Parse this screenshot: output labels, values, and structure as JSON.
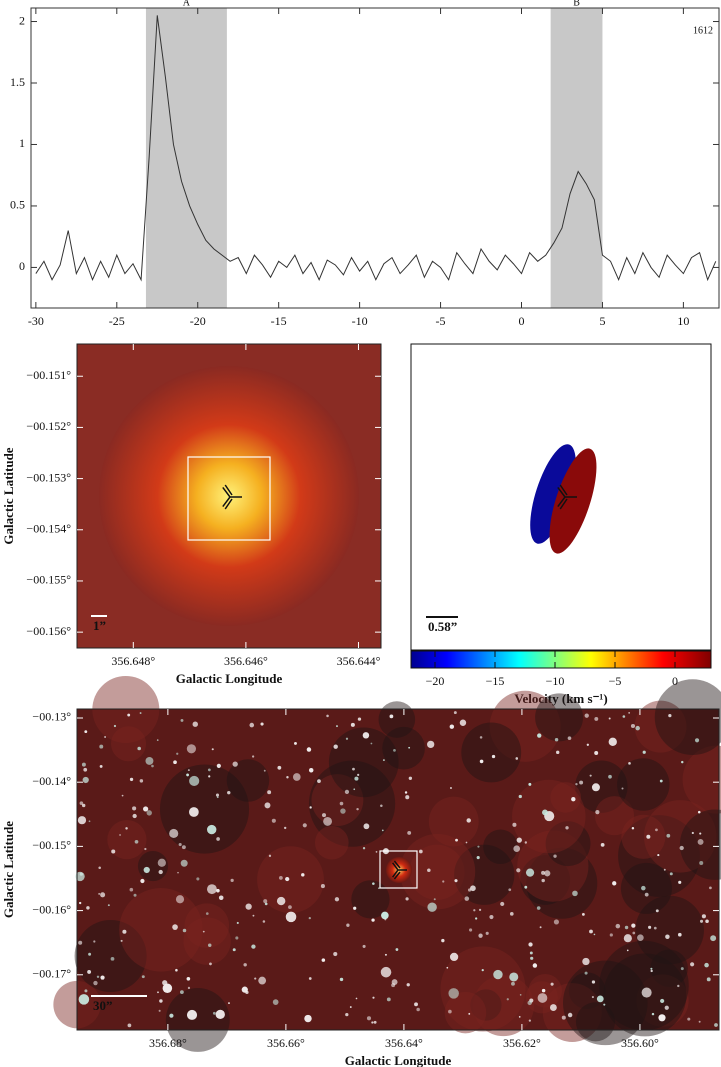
{
  "chart_data": [
    {
      "type": "line",
      "annotation": "1612",
      "color": "#333333",
      "xlim": [
        -30.3,
        12.2
      ],
      "ylim": [
        -0.33,
        2.11
      ],
      "xticks": [
        -30,
        -25,
        -20,
        -15,
        -10,
        -5,
        0,
        5,
        10
      ],
      "yticks": [
        0,
        0.5,
        1,
        1.5,
        2
      ],
      "regions": [
        {
          "label": "A",
          "range": [
            -23.2,
            -18.2
          ]
        },
        {
          "label": "B",
          "range": [
            1.8,
            5.0
          ]
        }
      ],
      "x": [
        -30,
        -29.5,
        -29,
        -28.5,
        -28,
        -27.5,
        -27,
        -26.5,
        -26,
        -25.5,
        -25,
        -24.5,
        -24,
        -23.5,
        -23,
        -22.5,
        -22,
        -21.5,
        -21,
        -20.5,
        -20,
        -19.5,
        -19,
        -18.5,
        -18,
        -17.5,
        -17,
        -16.5,
        -16,
        -15.5,
        -15,
        -14.5,
        -14,
        -13.5,
        -13,
        -12.5,
        -12,
        -11.5,
        -11,
        -10.5,
        -10,
        -9.5,
        -9,
        -8.5,
        -8,
        -7.5,
        -7,
        -6.5,
        -6,
        -5.5,
        -5,
        -4.5,
        -4,
        -3.5,
        -3,
        -2.5,
        -2,
        -1.5,
        -1,
        -0.5,
        0,
        0.5,
        1,
        1.5,
        2,
        2.5,
        3,
        3.5,
        4,
        4.5,
        5,
        5.5,
        6,
        6.5,
        7,
        7.5,
        8,
        8.5,
        9,
        9.5,
        10,
        10.5,
        11,
        11.5,
        12
      ],
      "values": [
        -0.05,
        0.05,
        -0.1,
        0.02,
        0.3,
        -0.05,
        0.08,
        -0.1,
        0.05,
        -0.08,
        0.1,
        -0.05,
        0.03,
        -0.1,
        0.9,
        2.05,
        1.55,
        1.0,
        0.7,
        0.5,
        0.35,
        0.22,
        0.15,
        0.1,
        0.05,
        0.08,
        -0.05,
        0.1,
        0.02,
        -0.08,
        0.05,
        0.0,
        0.1,
        -0.05,
        0.04,
        -0.1,
        0.06,
        0.02,
        -0.06,
        0.08,
        -0.03,
        0.05,
        -0.1,
        0.03,
        0.08,
        -0.05,
        0.02,
        0.1,
        -0.08,
        0.05,
        0.0,
        -0.1,
        0.12,
        0.03,
        -0.05,
        0.15,
        0.05,
        -0.02,
        0.1,
        0.03,
        -0.05,
        0.12,
        0.05,
        0.1,
        0.2,
        0.32,
        0.6,
        0.78,
        0.68,
        0.55,
        0.1,
        0.05,
        -0.1,
        0.08,
        -0.05,
        0.12,
        0.0,
        -0.08,
        0.1,
        0.02,
        -0.05,
        0.08,
        0.12,
        -0.1,
        0.05
      ]
    },
    {
      "type": "image",
      "xlabel": "Galactic Longitude",
      "ylabel": "Galactic Latitude",
      "scalebar": "1”",
      "xlim": [
        356.649,
        356.6436
      ],
      "ylim": [
        -0.15631,
        -0.15037
      ],
      "xticks": [
        {
          "value": 356.648,
          "label": "356.648°"
        },
        {
          "value": 356.646,
          "label": "356.646°"
        },
        {
          "value": 356.644,
          "label": "356.644°"
        }
      ],
      "yticks": [
        {
          "value": -0.151,
          "label": "−00.151°"
        },
        {
          "value": -0.152,
          "label": "−00.152°"
        },
        {
          "value": -0.153,
          "label": "−00.153°"
        },
        {
          "value": -0.154,
          "label": "−00.154°"
        },
        {
          "value": -0.155,
          "label": "−00.155°"
        },
        {
          "value": -0.156,
          "label": "−00.156°"
        }
      ]
    },
    {
      "type": "velocity",
      "xlabel": "Velocity (km s⁻¹)",
      "scalebar": "0.58”",
      "xlim": [
        -22.0,
        3.0
      ],
      "xticks": [
        {
          "value": -20,
          "label": "−20"
        },
        {
          "value": -15,
          "label": "−15"
        },
        {
          "value": -10,
          "label": "−10"
        },
        {
          "value": -5,
          "label": "−5"
        },
        0
      ]
    },
    {
      "type": "image",
      "variant": "field",
      "xlabel": "Galactic Longitude",
      "ylabel": "Galactic Latitude",
      "scalebar": "30”",
      "xlim": [
        356.6954,
        356.5866
      ],
      "ylim": [
        -0.1786,
        -0.1286
      ],
      "xticks": [
        {
          "value": 356.68,
          "label": "356.68°"
        },
        {
          "value": 356.66,
          "label": "356.66°"
        },
        {
          "value": 356.64,
          "label": "356.64°"
        },
        {
          "value": 356.62,
          "label": "356.62°"
        },
        {
          "value": 356.6,
          "label": "356.60°"
        }
      ],
      "yticks": [
        {
          "value": -0.13,
          "label": "−00.13°"
        },
        {
          "value": -0.14,
          "label": "−00.14°"
        },
        {
          "value": -0.15,
          "label": "−00.15°"
        },
        {
          "value": -0.16,
          "label": "−00.16°"
        },
        {
          "value": -0.17,
          "label": "−00.17°"
        }
      ]
    }
  ]
}
